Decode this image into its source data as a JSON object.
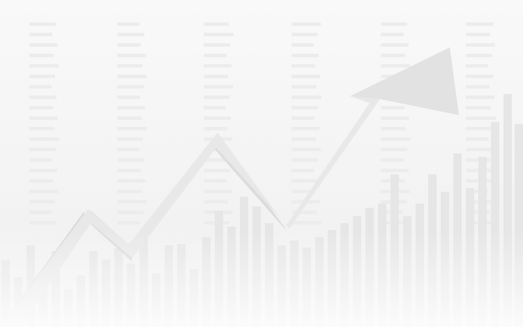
{
  "colors": {
    "background_top": "#f9f9f9",
    "background_bottom": "#efefef",
    "bars": "#e6e6e6",
    "numbers": "#ececec",
    "arrow_face": "#e8e8e8",
    "arrow_shadow": "#d9d9d9",
    "bottom_fade": "#ffffff"
  },
  "icon": "rising-arrow-icon"
}
